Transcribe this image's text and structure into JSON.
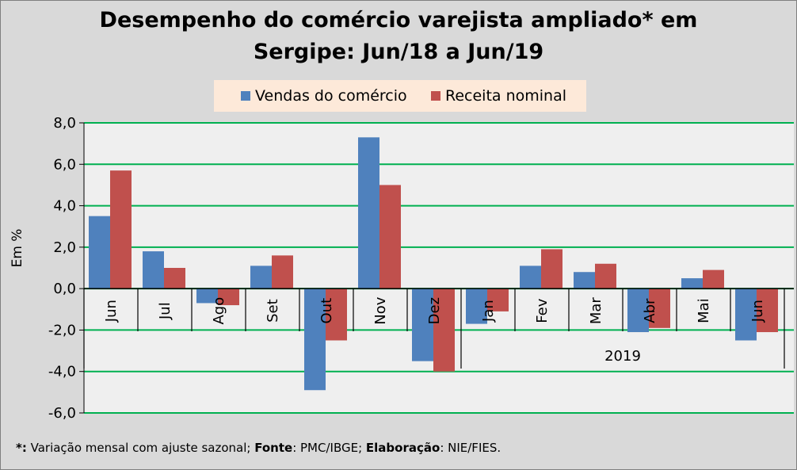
{
  "chart_data": {
    "type": "bar",
    "title_line1": "Desempenho do comércio varejista ampliado* em",
    "title_line2": "Sergipe: Jun/18 a Jun/19",
    "ylabel": "Em %",
    "ylim": [
      -6,
      8
    ],
    "yticks": [
      -6,
      -4,
      -2,
      0,
      2,
      4,
      6,
      8
    ],
    "ytick_labels": [
      "-6,0",
      "-4,0",
      "-2,0",
      "0,0",
      "2,0",
      "4,0",
      "6,0",
      "8,0"
    ],
    "categories": [
      "Jun",
      "Jul",
      "Ago",
      "Set",
      "Out",
      "Nov",
      "Dez",
      "Jan",
      "Fev",
      "Mar",
      "Abr",
      "Mai",
      "Jun"
    ],
    "group_label": "2019",
    "group_start_index": 7,
    "legend_position": "top",
    "grid": true,
    "series": [
      {
        "name": "Vendas do comércio",
        "color": "#4f81bd",
        "values": [
          3.5,
          1.8,
          -0.7,
          1.1,
          -4.9,
          7.3,
          -3.5,
          -1.7,
          1.1,
          0.8,
          -2.1,
          0.5,
          -2.5
        ]
      },
      {
        "name": "Receita nominal",
        "color": "#c0504d",
        "values": [
          5.7,
          1.0,
          -0.8,
          1.6,
          -2.5,
          5.0,
          -4.0,
          -1.1,
          1.9,
          1.2,
          -1.9,
          0.9,
          -2.1
        ]
      }
    ]
  },
  "footnote": {
    "star": "*:",
    "text1": " Variação mensal com ajuste sazonal; ",
    "fonte_label": "Fonte",
    "fonte_value": ": PMC/IBGE; ",
    "elab_label": "Elaboração",
    "elab_value": ": NIE/FIES."
  },
  "colors": {
    "plot_background": "#efefef",
    "gridline": "#00b050",
    "page_background": "#d9d9d9",
    "legend_background": "#fde9d9"
  }
}
